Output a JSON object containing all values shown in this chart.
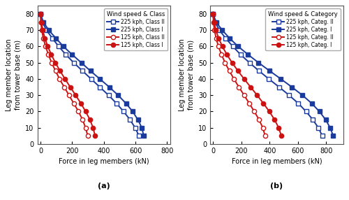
{
  "y_heights": [
    80,
    75,
    70,
    65,
    60,
    55,
    50,
    45,
    40,
    35,
    30,
    25,
    20,
    15,
    10,
    5
  ],
  "panel_a": {
    "title_label": "(a)",
    "legend_title": "Wind speed & Class",
    "legend_entries": [
      "225 kph, Class II",
      "225 kph, Class I",
      "125 kph, Class II",
      "125 kph, Class I"
    ],
    "xlim": [
      -20,
      820
    ],
    "xticks": [
      0,
      200,
      400,
      600,
      800
    ],
    "series": {
      "225_classII": [
        0,
        12,
        38,
        75,
        115,
        160,
        210,
        265,
        320,
        375,
        430,
        480,
        525,
        565,
        598,
        622
      ],
      "225_classI": [
        0,
        18,
        52,
        98,
        145,
        200,
        258,
        315,
        375,
        435,
        490,
        540,
        582,
        615,
        640,
        652
      ],
      "125_classII": [
        0,
        2,
        8,
        18,
        32,
        50,
        70,
        95,
        120,
        150,
        180,
        210,
        240,
        265,
        285,
        298
      ],
      "125_classI": [
        0,
        5,
        14,
        28,
        46,
        68,
        94,
        123,
        155,
        188,
        222,
        255,
        285,
        312,
        332,
        345
      ]
    }
  },
  "panel_b": {
    "title_label": "(b)",
    "legend_title": "Wind speed & Category",
    "legend_entries": [
      "225 kph, Categ. II",
      "225 kph, Categ. I",
      "125 kph, Categ. II",
      "125 kph, Categ. I"
    ],
    "xlim": [
      -20,
      920
    ],
    "xticks": [
      0,
      200,
      400,
      600,
      800
    ],
    "series": {
      "225_catII": [
        0,
        14,
        45,
        90,
        140,
        195,
        258,
        325,
        395,
        468,
        538,
        603,
        658,
        705,
        745,
        772
      ],
      "225_catI": [
        0,
        22,
        65,
        118,
        178,
        248,
        322,
        400,
        480,
        558,
        632,
        698,
        752,
        796,
        828,
        850
      ],
      "125_catII": [
        0,
        3,
        10,
        22,
        38,
        60,
        85,
        115,
        148,
        183,
        220,
        256,
        292,
        325,
        352,
        368
      ],
      "125_catI": [
        0,
        7,
        20,
        40,
        66,
        98,
        135,
        176,
        220,
        266,
        312,
        356,
        398,
        435,
        464,
        483
      ]
    }
  },
  "xlabel": "Force in leg members (kN)",
  "ylabel": "Leg member location\nfrom tower base (m)",
  "blue_color": "#1a3a9c",
  "red_color": "#cc1111",
  "bg_color": "#ffffff",
  "yticks": [
    0,
    10,
    20,
    30,
    40,
    50,
    60,
    70,
    80
  ],
  "ylim": [
    0,
    85
  ]
}
